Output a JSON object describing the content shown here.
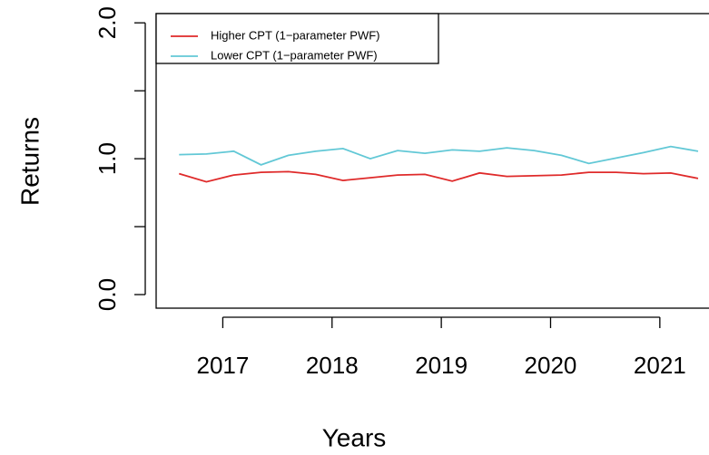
{
  "chart_data": {
    "type": "line",
    "x_label": "Years",
    "y_label": "Returns",
    "x": [
      2016.6,
      2016.85,
      2017.1,
      2017.35,
      2017.6,
      2017.85,
      2018.1,
      2018.35,
      2018.6,
      2018.85,
      2019.1,
      2019.35,
      2019.6,
      2019.85,
      2020.1,
      2020.35,
      2020.6,
      2020.85,
      2021.1,
      2021.35
    ],
    "series": [
      {
        "name": "Higher CPT (1−parameter PWF)",
        "color": "#df2a2a",
        "values": [
          0.89,
          0.83,
          0.88,
          0.9,
          0.905,
          0.885,
          0.84,
          0.86,
          0.88,
          0.885,
          0.835,
          0.895,
          0.87,
          0.875,
          0.88,
          0.9,
          0.9,
          0.89,
          0.895,
          0.855
        ]
      },
      {
        "name": "Lower CPT (1−parameter PWF)",
        "color": "#62c8d6",
        "values": [
          1.03,
          1.035,
          1.055,
          0.955,
          1.025,
          1.055,
          1.075,
          1.0,
          1.06,
          1.04,
          1.065,
          1.055,
          1.08,
          1.06,
          1.025,
          0.965,
          1.005,
          1.045,
          1.09,
          1.055
        ]
      }
    ],
    "xlim": [
      2016.39,
      2021.45
    ],
    "xticks": [
      2017,
      2018,
      2019,
      2020,
      2021
    ],
    "ylim": [
      -0.1,
      2.068
    ],
    "yticks": [
      {
        "value": 0,
        "label": "0.0"
      },
      {
        "value": 1,
        "label": "1.0"
      },
      {
        "value": 2,
        "label": "2.0"
      }
    ],
    "yminor_ticks": [
      0.5,
      1.5
    ],
    "legend": "top-left"
  }
}
